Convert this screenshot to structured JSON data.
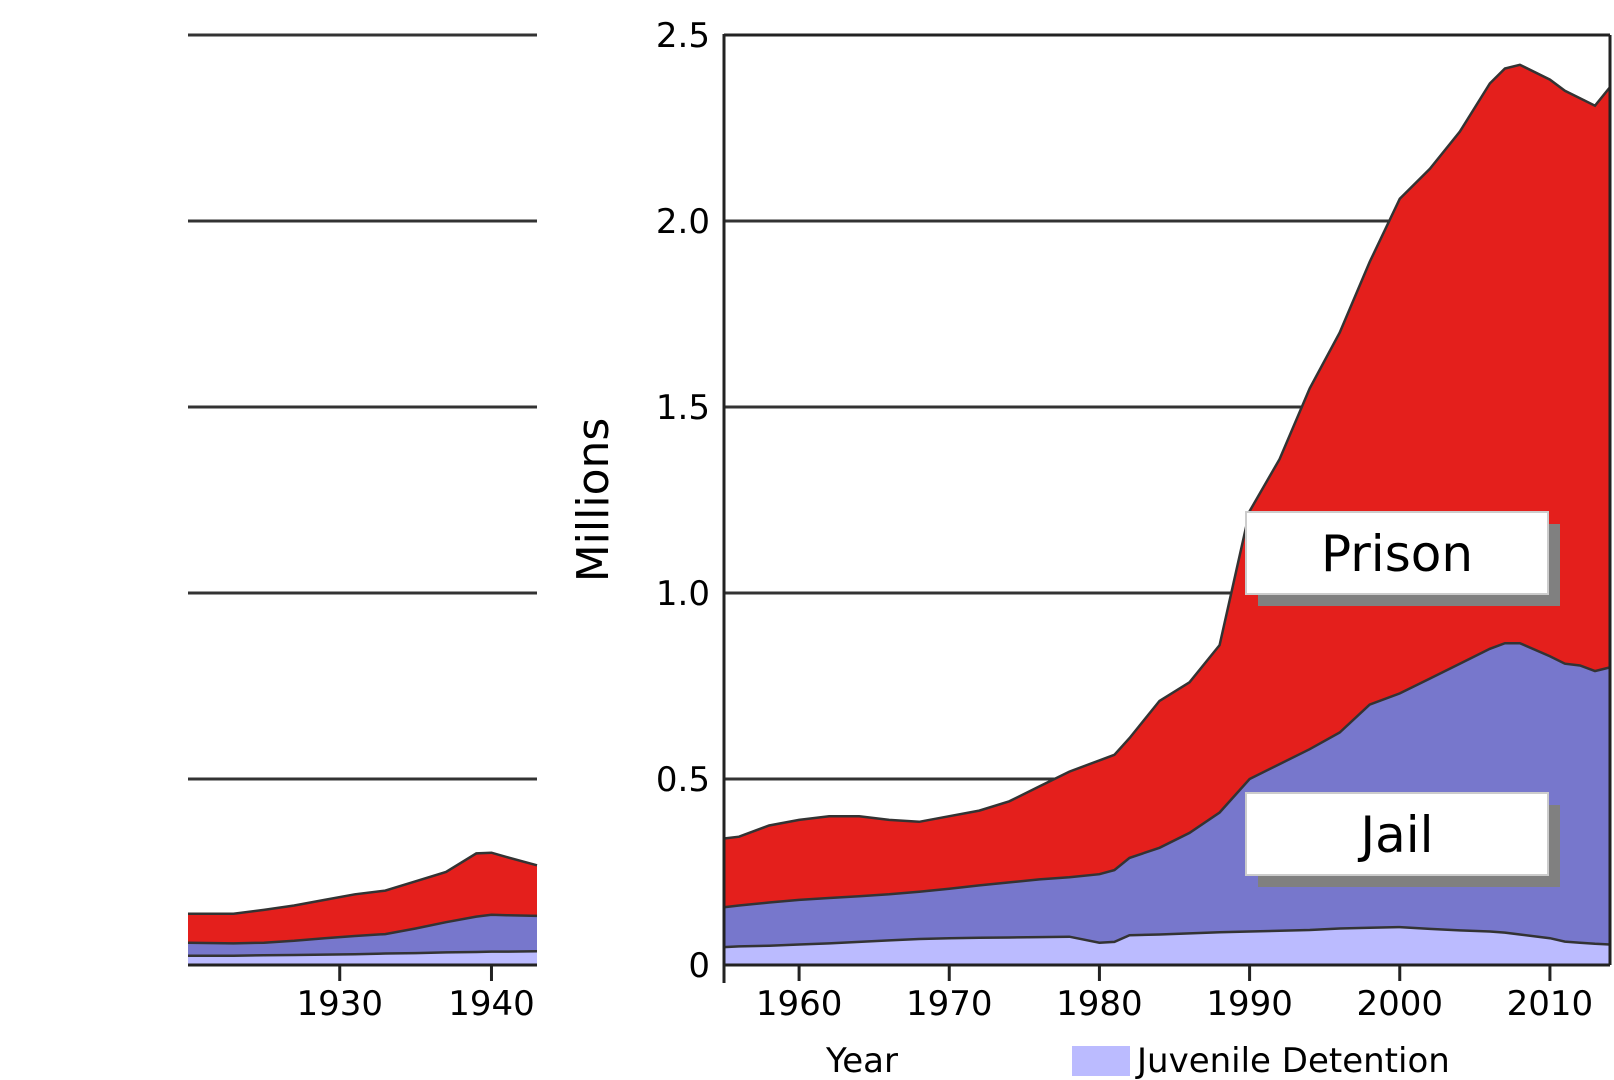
{
  "chart_data": {
    "type": "area",
    "stacked": true,
    "ylabel": "Millions",
    "xlabel": "Year",
    "ylim": [
      0,
      2.5
    ],
    "yticks": [
      "0",
      "0.5",
      "1.0",
      "1.5",
      "2.0",
      "2.5"
    ],
    "grid": true,
    "colors": {
      "prison": "#e41f1c",
      "jail": "#7777cc",
      "juvenile": "#bbbbff",
      "outline": "#333333"
    },
    "annotations": {
      "prison": "Prison",
      "jail": "Jail"
    },
    "legend": {
      "position": "bottom",
      "label": "Juvenile Detention"
    },
    "panels": [
      {
        "xrange": [
          1920,
          1943
        ],
        "xticks": [
          "1930",
          "1940"
        ],
        "x": [
          1920,
          1923,
          1925,
          1927,
          1929,
          1931,
          1933,
          1935,
          1937,
          1939,
          1940,
          1941,
          1943
        ],
        "cumulative": {
          "juvenile": [
            0.025,
            0.025,
            0.026,
            0.027,
            0.028,
            0.029,
            0.031,
            0.032,
            0.034,
            0.035,
            0.036,
            0.036,
            0.037
          ],
          "jail": [
            0.06,
            0.058,
            0.06,
            0.065,
            0.072,
            0.078,
            0.083,
            0.098,
            0.115,
            0.13,
            0.135,
            0.134,
            0.132
          ],
          "prison": [
            0.138,
            0.138,
            0.148,
            0.16,
            0.175,
            0.19,
            0.2,
            0.225,
            0.25,
            0.3,
            0.302,
            0.29,
            0.268
          ]
        }
      },
      {
        "xrange": [
          1955,
          2014
        ],
        "xticks": [
          "1960",
          "1970",
          "1980",
          "1990",
          "2000",
          "2010"
        ],
        "x": [
          1955,
          1956,
          1958,
          1960,
          1962,
          1964,
          1966,
          1968,
          1970,
          1972,
          1974,
          1976,
          1978,
          1980,
          1981,
          1982,
          1984,
          1986,
          1988,
          1990,
          1992,
          1994,
          1996,
          1998,
          2000,
          2002,
          2004,
          2006,
          2007,
          2008,
          2010,
          2011,
          2012,
          2013,
          2014
        ],
        "cumulative": {
          "juvenile": [
            0.048,
            0.05,
            0.052,
            0.055,
            0.058,
            0.062,
            0.066,
            0.07,
            0.072,
            0.073,
            0.074,
            0.075,
            0.076,
            0.06,
            0.062,
            0.08,
            0.082,
            0.085,
            0.088,
            0.09,
            0.092,
            0.094,
            0.098,
            0.1,
            0.102,
            0.097,
            0.093,
            0.09,
            0.087,
            0.082,
            0.072,
            0.063,
            0.06,
            0.057,
            0.055
          ],
          "jail": [
            0.155,
            0.16,
            0.168,
            0.175,
            0.18,
            0.185,
            0.19,
            0.197,
            0.205,
            0.214,
            0.222,
            0.23,
            0.236,
            0.244,
            0.255,
            0.288,
            0.315,
            0.355,
            0.41,
            0.5,
            0.54,
            0.58,
            0.625,
            0.7,
            0.73,
            0.77,
            0.81,
            0.85,
            0.865,
            0.865,
            0.83,
            0.81,
            0.805,
            0.79,
            0.8
          ],
          "prison": [
            0.34,
            0.345,
            0.375,
            0.39,
            0.4,
            0.4,
            0.39,
            0.385,
            0.4,
            0.415,
            0.44,
            0.48,
            0.52,
            0.55,
            0.565,
            0.61,
            0.71,
            0.76,
            0.86,
            1.22,
            1.36,
            1.55,
            1.7,
            1.89,
            2.06,
            2.14,
            2.24,
            2.37,
            2.41,
            2.42,
            2.38,
            2.35,
            2.33,
            2.31,
            2.36
          ]
        }
      }
    ]
  }
}
